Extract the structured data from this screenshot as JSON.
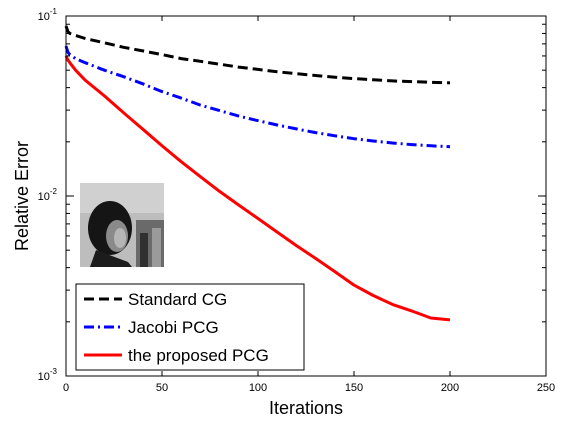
{
  "chart_data": {
    "type": "line",
    "title": "",
    "xlabel": "Iterations",
    "ylabel": "Relative Error",
    "xlim": [
      0,
      250
    ],
    "ylim": [
      0.001,
      0.1
    ],
    "yscale": "log",
    "grid": false,
    "legend_position": "bottom-left",
    "x_ticks": [
      "0",
      "50",
      "100",
      "150",
      "200",
      "250"
    ],
    "y_ticks": [
      {
        "base": "10",
        "exp": "-3",
        "value": 0.001
      },
      {
        "base": "10",
        "exp": "-2",
        "value": 0.01
      },
      {
        "base": "10",
        "exp": "-1",
        "value": 0.1
      }
    ],
    "inset_image": "grayscale-portrait-photo",
    "series": [
      {
        "name": "Standard CG",
        "color": "#000000",
        "dash": "dashed",
        "x": [
          0,
          1,
          2,
          5,
          10,
          20,
          30,
          40,
          50,
          60,
          70,
          80,
          90,
          100,
          110,
          120,
          130,
          140,
          150,
          160,
          170,
          180,
          190,
          200
        ],
        "y": [
          0.088,
          0.082,
          0.08,
          0.078,
          0.075,
          0.071,
          0.067,
          0.064,
          0.061,
          0.058,
          0.056,
          0.054,
          0.052,
          0.0505,
          0.049,
          0.0478,
          0.0467,
          0.0457,
          0.0449,
          0.0442,
          0.0436,
          0.0432,
          0.0428,
          0.0425
        ]
      },
      {
        "name": "Jacobi PCG",
        "color": "#0000ff",
        "dash": "dashdot",
        "x": [
          0,
          1,
          2,
          5,
          10,
          20,
          30,
          40,
          50,
          60,
          70,
          80,
          90,
          100,
          110,
          120,
          130,
          140,
          150,
          160,
          170,
          180,
          190,
          200
        ],
        "y": [
          0.068,
          0.063,
          0.061,
          0.058,
          0.055,
          0.05,
          0.046,
          0.042,
          0.038,
          0.035,
          0.032,
          0.0298,
          0.0278,
          0.0262,
          0.0248,
          0.0236,
          0.0225,
          0.0216,
          0.0208,
          0.0202,
          0.0197,
          0.0193,
          0.019,
          0.0188
        ]
      },
      {
        "name": "the proposed PCG",
        "color": "#ff0000",
        "dash": "solid",
        "x": [
          0,
          1,
          2,
          5,
          10,
          20,
          30,
          40,
          50,
          60,
          70,
          80,
          90,
          100,
          110,
          120,
          130,
          140,
          150,
          160,
          170,
          180,
          190,
          200
        ],
        "y": [
          0.06,
          0.057,
          0.055,
          0.05,
          0.044,
          0.036,
          0.029,
          0.0235,
          0.019,
          0.0155,
          0.0128,
          0.0106,
          0.0089,
          0.0075,
          0.0063,
          0.0053,
          0.0045,
          0.0038,
          0.0032,
          0.0028,
          0.0025,
          0.0023,
          0.0021,
          0.00205
        ]
      }
    ]
  }
}
